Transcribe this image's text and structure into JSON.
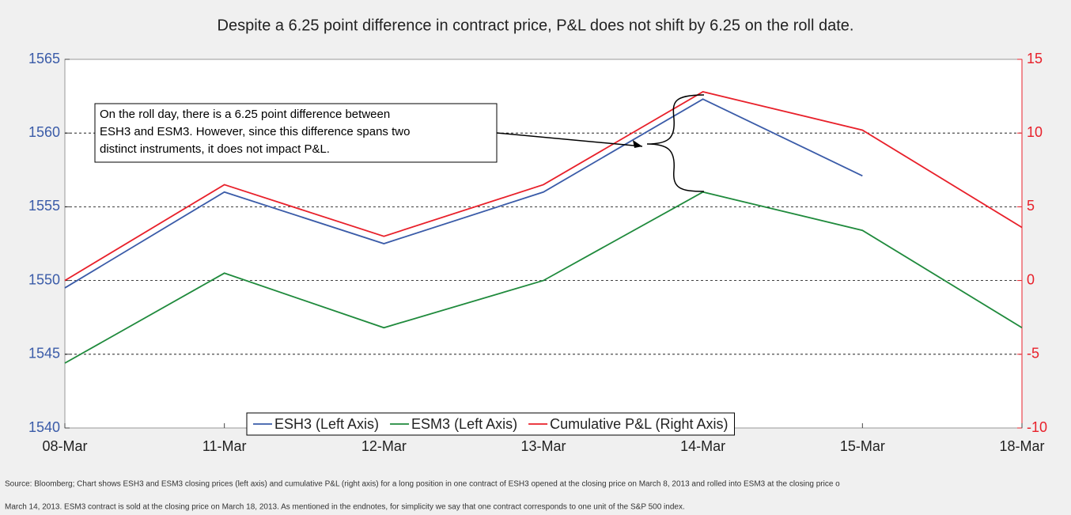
{
  "chart_data": {
    "type": "line",
    "title": "Despite a 6.25 point difference in contract price, P&L does not shift by 6.25 on the roll date.",
    "categories": [
      "08-Mar",
      "11-Mar",
      "12-Mar",
      "13-Mar",
      "14-Mar",
      "15-Mar",
      "18-Mar"
    ],
    "series": [
      {
        "name": "ESH3 (Left Axis)",
        "color": "#3a5ba8",
        "values": [
          1549.5,
          1556.0,
          1552.5,
          1556.0,
          1562.3,
          1557.1,
          null
        ]
      },
      {
        "name": "ESM3 (Left Axis)",
        "color": "#1f8a3c",
        "values": [
          1544.4,
          1550.5,
          1546.8,
          1550.0,
          1556.0,
          1553.4,
          1546.8
        ]
      },
      {
        "name": "Cumulative P&L (Right Axis)",
        "color": "#e8202a",
        "axis": "y2",
        "values": [
          0,
          6.5,
          3.0,
          6.5,
          12.8,
          10.2,
          3.6
        ]
      }
    ],
    "ylim": [
      1540,
      1565
    ],
    "yticks": [
      1540,
      1545,
      1550,
      1555,
      1560,
      1565
    ],
    "y2lim": [
      -10,
      15
    ],
    "y2ticks": [
      -10,
      -5,
      0,
      5,
      10,
      15
    ],
    "y_color": "#3a5ba8",
    "y2_color": "#e8202a",
    "grid": true,
    "legend": "bottom",
    "annotation": [
      "On the roll day, there is a 6.25 point difference between",
      "ESH3 and ESM3. However, since this difference spans two",
      "distinct instruments, it does not impact P&L."
    ],
    "footnote": [
      "Source: Bloomberg; Chart shows ESH3 and ESM3 closing prices (left axis) and cumulative P&L (right axis) for a long position in one contract of ESH3 opened at the closing price on March 8, 2013 and rolled into ESM3 at the closing price o",
      "March 14, 2013. ESM3 contract is sold at the closing price on March 18, 2013. As mentioned in the endnotes, for simplicity we say that one contract corresponds to one unit of the S&P 500 index."
    ]
  }
}
